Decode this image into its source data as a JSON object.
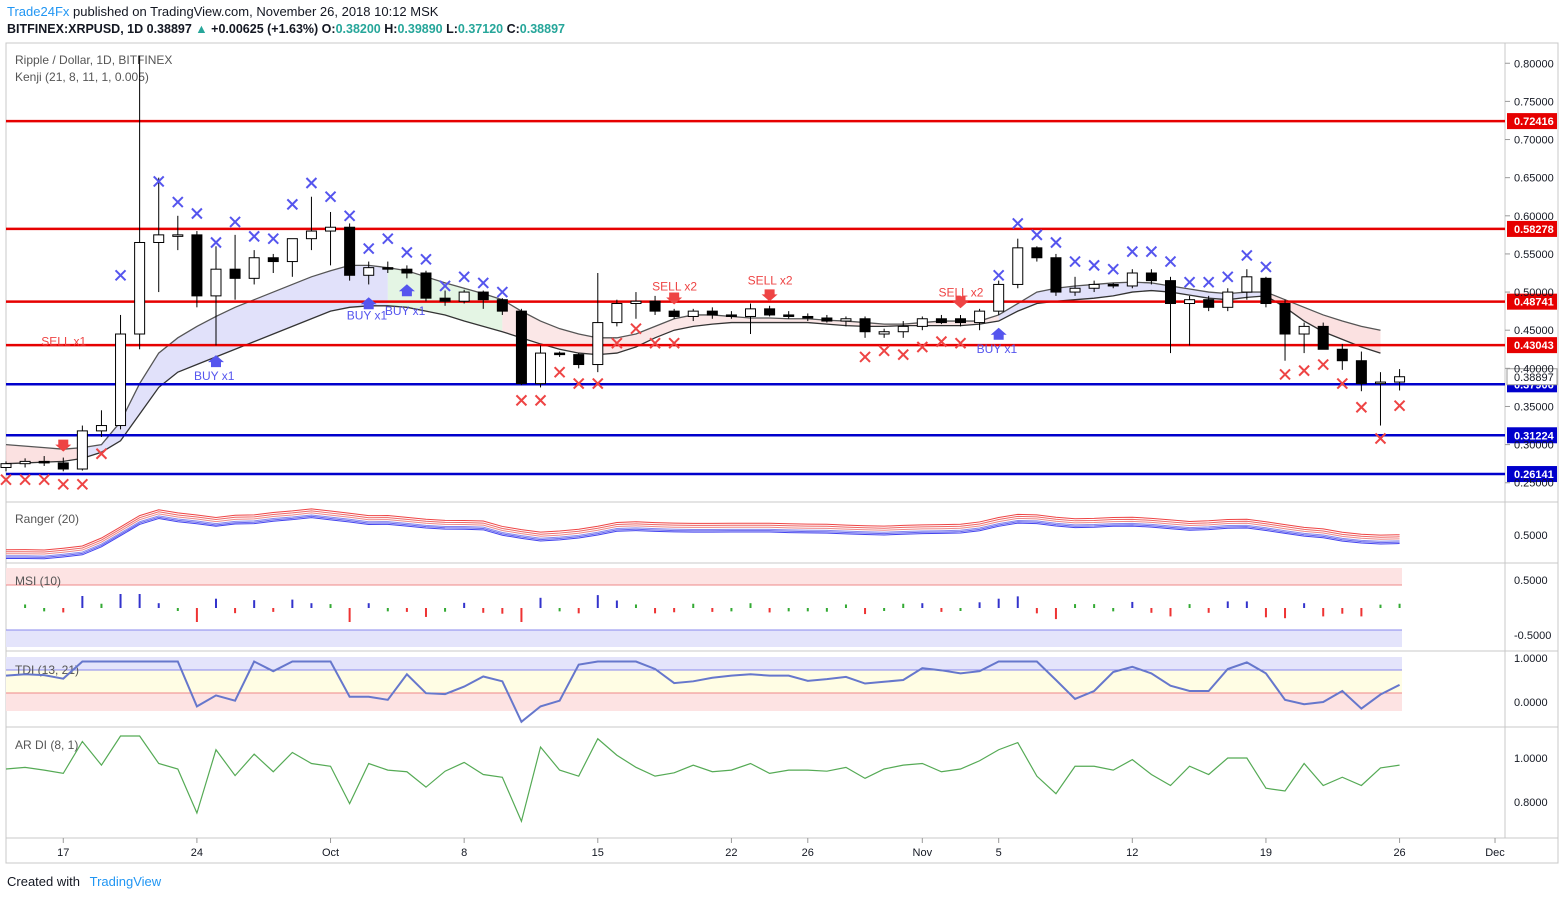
{
  "header": {
    "brand": "Trade24Fx",
    "published": " published on TradingView.com, November 26, 2018 10:12 MSK",
    "symbol": "BITFINEX:XRPUSD, 1D",
    "last": "0.38897",
    "arrow": "▲",
    "change": "+0.00625 (+1.63%)",
    "o_label": "O:",
    "o": "0.38200",
    "h_label": "H:",
    "h": "0.39890",
    "l_label": "L:",
    "l": "0.37120",
    "c_label": "C:",
    "c": "0.38897"
  },
  "footer": {
    "created": "Created with",
    "tv": "TradingView"
  },
  "colors": {
    "up": "#26a69a",
    "red": "#e60000",
    "blue": "#0000cc",
    "candle_up": "#ffffff",
    "candle_down": "#000000"
  },
  "chart_data": {
    "type": "candlestick",
    "title": "Ripple / Dollar, 1D, BITFINEX",
    "indicator": "Kenji (21, 8, 11, 1, 0.005)",
    "ylim": [
      0.23,
      0.82
    ],
    "y_ticks": [
      "0.80000",
      "0.75000",
      "0.70000",
      "0.65000",
      "0.60000",
      "0.55000",
      "0.50000",
      "0.45000",
      "0.40000",
      "0.35000",
      "0.30000",
      "0.25000"
    ],
    "x_ticks": [
      {
        "label": "17",
        "idx": 3
      },
      {
        "label": "24",
        "idx": 10
      },
      {
        "label": "Oct",
        "idx": 17
      },
      {
        "label": "8",
        "idx": 24
      },
      {
        "label": "15",
        "idx": 31
      },
      {
        "label": "22",
        "idx": 38
      },
      {
        "label": "26",
        "idx": 42
      },
      {
        "label": "Nov",
        "idx": 48
      },
      {
        "label": "5",
        "idx": 52
      },
      {
        "label": "12",
        "idx": 59
      },
      {
        "label": "19",
        "idx": 66
      },
      {
        "label": "26",
        "idx": 73
      },
      {
        "label": "Dec",
        "idx": 78
      }
    ],
    "candles": [
      [
        0.27,
        0.278,
        0.265,
        0.275
      ],
      [
        0.275,
        0.282,
        0.27,
        0.278
      ],
      [
        0.278,
        0.285,
        0.272,
        0.276
      ],
      [
        0.276,
        0.283,
        0.265,
        0.268
      ],
      [
        0.268,
        0.325,
        0.266,
        0.318
      ],
      [
        0.318,
        0.345,
        0.31,
        0.325
      ],
      [
        0.325,
        0.47,
        0.32,
        0.445
      ],
      [
        0.445,
        0.81,
        0.425,
        0.565
      ],
      [
        0.565,
        0.65,
        0.5,
        0.575
      ],
      [
        0.575,
        0.6,
        0.555,
        0.575
      ],
      [
        0.575,
        0.58,
        0.48,
        0.495
      ],
      [
        0.495,
        0.56,
        0.43,
        0.53
      ],
      [
        0.53,
        0.575,
        0.49,
        0.518
      ],
      [
        0.518,
        0.555,
        0.51,
        0.545
      ],
      [
        0.545,
        0.55,
        0.525,
        0.54
      ],
      [
        0.54,
        0.57,
        0.52,
        0.57
      ],
      [
        0.57,
        0.625,
        0.555,
        0.58
      ],
      [
        0.58,
        0.605,
        0.535,
        0.585
      ],
      [
        0.585,
        0.59,
        0.515,
        0.522
      ],
      [
        0.522,
        0.54,
        0.51,
        0.532
      ],
      [
        0.532,
        0.54,
        0.525,
        0.53
      ],
      [
        0.53,
        0.535,
        0.518,
        0.525
      ],
      [
        0.525,
        0.528,
        0.488,
        0.492
      ],
      [
        0.492,
        0.502,
        0.482,
        0.488
      ],
      [
        0.488,
        0.503,
        0.485,
        0.5
      ],
      [
        0.5,
        0.502,
        0.478,
        0.49
      ],
      [
        0.49,
        0.492,
        0.47,
        0.475
      ],
      [
        0.475,
        0.478,
        0.378,
        0.38
      ],
      [
        0.38,
        0.43,
        0.375,
        0.42
      ],
      [
        0.42,
        0.422,
        0.415,
        0.418
      ],
      [
        0.418,
        0.42,
        0.4,
        0.405
      ],
      [
        0.405,
        0.525,
        0.395,
        0.46
      ],
      [
        0.46,
        0.49,
        0.455,
        0.485
      ],
      [
        0.485,
        0.5,
        0.465,
        0.488
      ],
      [
        0.488,
        0.495,
        0.47,
        0.475
      ],
      [
        0.475,
        0.478,
        0.465,
        0.468
      ],
      [
        0.468,
        0.478,
        0.462,
        0.475
      ],
      [
        0.475,
        0.48,
        0.465,
        0.47
      ],
      [
        0.47,
        0.475,
        0.465,
        0.468
      ],
      [
        0.468,
        0.485,
        0.445,
        0.478
      ],
      [
        0.478,
        0.482,
        0.468,
        0.47
      ],
      [
        0.47,
        0.475,
        0.465,
        0.468
      ],
      [
        0.468,
        0.472,
        0.462,
        0.466
      ],
      [
        0.466,
        0.47,
        0.46,
        0.462
      ],
      [
        0.462,
        0.468,
        0.455,
        0.465
      ],
      [
        0.465,
        0.468,
        0.44,
        0.448
      ],
      [
        0.445,
        0.452,
        0.44,
        0.448
      ],
      [
        0.448,
        0.462,
        0.44,
        0.455
      ],
      [
        0.455,
        0.468,
        0.45,
        0.465
      ],
      [
        0.465,
        0.47,
        0.458,
        0.46
      ],
      [
        0.465,
        0.47,
        0.455,
        0.46
      ],
      [
        0.46,
        0.478,
        0.45,
        0.475
      ],
      [
        0.475,
        0.515,
        0.47,
        0.51
      ],
      [
        0.51,
        0.57,
        0.505,
        0.558
      ],
      [
        0.558,
        0.56,
        0.54,
        0.545
      ],
      [
        0.545,
        0.55,
        0.495,
        0.5
      ],
      [
        0.5,
        0.52,
        0.495,
        0.505
      ],
      [
        0.505,
        0.515,
        0.5,
        0.51
      ],
      [
        0.51,
        0.512,
        0.505,
        0.508
      ],
      [
        0.508,
        0.53,
        0.505,
        0.525
      ],
      [
        0.525,
        0.53,
        0.51,
        0.515
      ],
      [
        0.515,
        0.52,
        0.42,
        0.485
      ],
      [
        0.485,
        0.495,
        0.43,
        0.49
      ],
      [
        0.49,
        0.495,
        0.475,
        0.48
      ],
      [
        0.48,
        0.505,
        0.475,
        0.5
      ],
      [
        0.5,
        0.53,
        0.49,
        0.52
      ],
      [
        0.518,
        0.52,
        0.48,
        0.485
      ],
      [
        0.485,
        0.49,
        0.41,
        0.445
      ],
      [
        0.445,
        0.46,
        0.42,
        0.455
      ],
      [
        0.455,
        0.46,
        0.425,
        0.425
      ],
      [
        0.425,
        0.432,
        0.398,
        0.41
      ],
      [
        0.41,
        0.422,
        0.37,
        0.38
      ],
      [
        0.38,
        0.395,
        0.325,
        0.382
      ],
      [
        0.382,
        0.399,
        0.371,
        0.389
      ]
    ],
    "band_upper": [
      0.3,
      0.298,
      0.296,
      0.294,
      0.296,
      0.3,
      0.33,
      0.38,
      0.42,
      0.44,
      0.455,
      0.468,
      0.48,
      0.49,
      0.5,
      0.51,
      0.52,
      0.528,
      0.535,
      0.535,
      0.532,
      0.528,
      0.52,
      0.512,
      0.505,
      0.498,
      0.49,
      0.475,
      0.462,
      0.452,
      0.445,
      0.44,
      0.44,
      0.445,
      0.455,
      0.465,
      0.47,
      0.47,
      0.468,
      0.466,
      0.466,
      0.465,
      0.465,
      0.463,
      0.462,
      0.46,
      0.458,
      0.458,
      0.46,
      0.462,
      0.462,
      0.462,
      0.47,
      0.485,
      0.5,
      0.505,
      0.508,
      0.51,
      0.512,
      0.513,
      0.512,
      0.508,
      0.504,
      0.5,
      0.498,
      0.5,
      0.5,
      0.49,
      0.48,
      0.47,
      0.462,
      0.455,
      0.45
    ],
    "band_lower": [
      0.275,
      0.276,
      0.277,
      0.278,
      0.282,
      0.29,
      0.305,
      0.34,
      0.375,
      0.395,
      0.405,
      0.415,
      0.425,
      0.435,
      0.445,
      0.455,
      0.465,
      0.475,
      0.48,
      0.482,
      0.482,
      0.48,
      0.475,
      0.47,
      0.462,
      0.455,
      0.448,
      0.44,
      0.432,
      0.425,
      0.42,
      0.418,
      0.42,
      0.428,
      0.44,
      0.45,
      0.455,
      0.458,
      0.46,
      0.46,
      0.46,
      0.46,
      0.46,
      0.458,
      0.456,
      0.455,
      0.455,
      0.456,
      0.456,
      0.456,
      0.456,
      0.458,
      0.462,
      0.475,
      0.485,
      0.488,
      0.49,
      0.492,
      0.495,
      0.5,
      0.502,
      0.5,
      0.496,
      0.492,
      0.49,
      0.493,
      0.495,
      0.48,
      0.462,
      0.448,
      0.438,
      0.428,
      0.42
    ],
    "levels": [
      {
        "value": 0.72416,
        "label": "0.72416",
        "color": "#e60000"
      },
      {
        "value": 0.58278,
        "label": "0.58278",
        "color": "#e60000"
      },
      {
        "value": 0.48741,
        "label": "0.48741",
        "color": "#e60000"
      },
      {
        "value": 0.43043,
        "label": "0.43043",
        "color": "#e60000"
      },
      {
        "value": 0.37906,
        "label": "0.37906",
        "color": "#0000cc"
      },
      {
        "value": 0.31224,
        "label": "0.31224",
        "color": "#0000cc"
      },
      {
        "value": 0.26141,
        "label": "0.26141",
        "color": "#0000cc"
      }
    ],
    "current_price": {
      "value": 0.38897,
      "label": "0.38897"
    },
    "x_marks_blue": [
      [
        6,
        0.522
      ],
      [
        8,
        0.645
      ],
      [
        9,
        0.618
      ],
      [
        10,
        0.603
      ],
      [
        11,
        0.565
      ],
      [
        12,
        0.592
      ],
      [
        13,
        0.573
      ],
      [
        14,
        0.57
      ],
      [
        15,
        0.615
      ],
      [
        16,
        0.643
      ],
      [
        17,
        0.625
      ],
      [
        18,
        0.6
      ],
      [
        19,
        0.557
      ],
      [
        20,
        0.57
      ],
      [
        21,
        0.552
      ],
      [
        22,
        0.543
      ],
      [
        23,
        0.508
      ],
      [
        24,
        0.52
      ],
      [
        25,
        0.512
      ],
      [
        26,
        0.5
      ],
      [
        52,
        0.522
      ],
      [
        53,
        0.59
      ],
      [
        54,
        0.575
      ],
      [
        55,
        0.565
      ],
      [
        56,
        0.54
      ],
      [
        57,
        0.535
      ],
      [
        58,
        0.53
      ],
      [
        59,
        0.553
      ],
      [
        60,
        0.553
      ],
      [
        61,
        0.54
      ],
      [
        62,
        0.513
      ],
      [
        63,
        0.513
      ],
      [
        64,
        0.52
      ],
      [
        65,
        0.548
      ],
      [
        66,
        0.533
      ]
    ],
    "x_marks_red": [
      [
        0,
        0.254
      ],
      [
        1,
        0.254
      ],
      [
        2,
        0.254
      ],
      [
        3,
        0.248
      ],
      [
        4,
        0.248
      ],
      [
        5,
        0.288
      ],
      [
        27,
        0.358
      ],
      [
        28,
        0.358
      ],
      [
        29,
        0.395
      ],
      [
        30,
        0.38
      ],
      [
        31,
        0.38
      ],
      [
        32,
        0.433
      ],
      [
        33,
        0.452
      ],
      [
        34,
        0.433
      ],
      [
        35,
        0.433
      ],
      [
        45,
        0.415
      ],
      [
        46,
        0.423
      ],
      [
        47,
        0.418
      ],
      [
        48,
        0.428
      ],
      [
        49,
        0.435
      ],
      [
        50,
        0.433
      ],
      [
        67,
        0.392
      ],
      [
        68,
        0.397
      ],
      [
        69,
        0.405
      ],
      [
        70,
        0.38
      ],
      [
        71,
        0.349
      ],
      [
        72,
        0.308
      ],
      [
        73,
        0.351
      ]
    ],
    "signals": [
      {
        "text": "SELL x1",
        "idx": 3,
        "y": 0.43,
        "arrow_y": 0.296,
        "type": "sell"
      },
      {
        "text": "BUY x1",
        "idx": 11,
        "y": 0.385,
        "arrow_y": 0.412,
        "type": "buy"
      },
      {
        "text": "BUY x1",
        "idx": 19,
        "y": 0.464,
        "arrow_y": 0.488,
        "type": "buy"
      },
      {
        "text": "BUY x1",
        "idx": 21,
        "y": 0.47,
        "arrow_y": 0.505,
        "type": "buy"
      },
      {
        "text": "SELL x2",
        "idx": 35,
        "y": 0.502,
        "arrow_y": 0.489,
        "type": "sell"
      },
      {
        "text": "SELL x2",
        "idx": 40,
        "y": 0.51,
        "arrow_y": 0.493,
        "type": "sell"
      },
      {
        "text": "SELL x2",
        "idx": 50,
        "y": 0.494,
        "arrow_y": 0.484,
        "type": "sell"
      },
      {
        "text": "BUY x1",
        "idx": 52,
        "y": 0.42,
        "arrow_y": 0.448,
        "type": "buy"
      }
    ],
    "panels": [
      {
        "name": "Ranger (20)",
        "tick": "0.5000"
      },
      {
        "name": "MSI (10)",
        "ticks": [
          "0.5000",
          "-0.5000"
        ]
      },
      {
        "name": "TDI (13, 21)",
        "ticks": [
          "1.0000",
          "0.0000"
        ]
      },
      {
        "name": "AR DI (8, 1)",
        "ticks": [
          "1.0000",
          "0.8000"
        ]
      }
    ]
  }
}
